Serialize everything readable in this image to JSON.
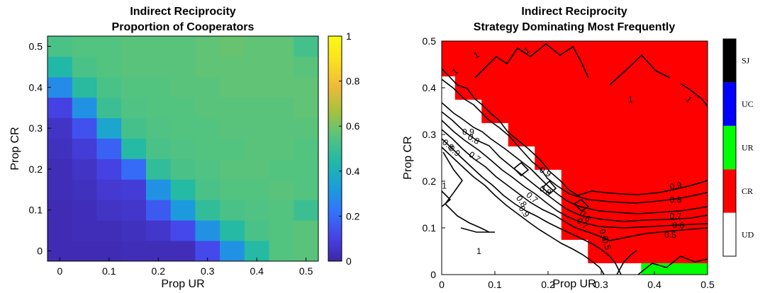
{
  "chart_data": [
    {
      "type": "heatmap",
      "title": "Indirect Reciprocity",
      "subtitle": "Proportion of Cooperators",
      "xlabel": "Prop UR",
      "ylabel": "Prop CR",
      "x_ticks": [
        "0",
        "0.1",
        "0.2",
        "0.3",
        "0.4",
        "0.5"
      ],
      "y_ticks": [
        "0",
        "0.1",
        "0.2",
        "0.3",
        "0.4",
        "0.5"
      ],
      "xlim": [
        -0.025,
        0.525
      ],
      "ylim": [
        -0.025,
        0.525
      ],
      "x": [
        0,
        0.05,
        0.1,
        0.15,
        0.2,
        0.25,
        0.3,
        0.35,
        0.4,
        0.45,
        0.5
      ],
      "y": [
        0,
        0.05,
        0.1,
        0.15,
        0.2,
        0.25,
        0.3,
        0.35,
        0.4,
        0.45,
        0.5
      ],
      "z": [
        [
          0.02,
          0.02,
          0.02,
          0.03,
          0.03,
          0.03,
          0.12,
          0.3,
          0.45,
          0.55,
          0.56
        ],
        [
          0.02,
          0.03,
          0.03,
          0.04,
          0.06,
          0.12,
          0.3,
          0.45,
          0.53,
          0.55,
          0.56
        ],
        [
          0.02,
          0.03,
          0.05,
          0.06,
          0.16,
          0.32,
          0.48,
          0.53,
          0.54,
          0.55,
          0.5
        ],
        [
          0.03,
          0.04,
          0.07,
          0.08,
          0.3,
          0.45,
          0.53,
          0.55,
          0.55,
          0.56,
          0.55
        ],
        [
          0.03,
          0.05,
          0.1,
          0.2,
          0.48,
          0.53,
          0.54,
          0.56,
          0.56,
          0.55,
          0.55
        ],
        [
          0.04,
          0.08,
          0.18,
          0.45,
          0.53,
          0.54,
          0.55,
          0.55,
          0.56,
          0.56,
          0.55
        ],
        [
          0.05,
          0.14,
          0.36,
          0.52,
          0.54,
          0.55,
          0.55,
          0.56,
          0.56,
          0.56,
          0.56
        ],
        [
          0.1,
          0.3,
          0.5,
          0.54,
          0.55,
          0.55,
          0.56,
          0.56,
          0.56,
          0.56,
          0.57
        ],
        [
          0.28,
          0.46,
          0.53,
          0.55,
          0.55,
          0.56,
          0.56,
          0.57,
          0.57,
          0.57,
          0.57
        ],
        [
          0.44,
          0.53,
          0.55,
          0.56,
          0.56,
          0.56,
          0.57,
          0.57,
          0.57,
          0.57,
          0.56
        ],
        [
          0.53,
          0.55,
          0.55,
          0.56,
          0.56,
          0.56,
          0.57,
          0.58,
          0.57,
          0.57,
          0.52
        ]
      ],
      "colorbar": {
        "min": 0,
        "max": 1,
        "tick_values": [
          0,
          0.2,
          0.4,
          0.6,
          0.8,
          1
        ],
        "tick_labels": [
          "0",
          "0.2",
          "0.4",
          "0.6",
          "0.8",
          "1"
        ],
        "colormap_stops": [
          "#3e26a8",
          "#4744e8",
          "#3075fb",
          "#1a9fd9",
          "#22b9a6",
          "#56c37e",
          "#a6c23f",
          "#f0ba3a",
          "#fae01f",
          "#f9fb15"
        ]
      }
    },
    {
      "type": "heatmap",
      "title": "Indirect Reciprocity",
      "subtitle": "Strategy Dominating Most Frequently",
      "xlabel": "Prop UR",
      "ylabel": "Prop CR",
      "x_ticks": [
        "0",
        "0.1",
        "0.2",
        "0.3",
        "0.4",
        "0.5"
      ],
      "y_ticks": [
        "0",
        "0.1",
        "0.2",
        "0.3",
        "0.4",
        "0.5"
      ],
      "xlim": [
        0,
        0.5
      ],
      "ylim": [
        0,
        0.5
      ],
      "x": [
        0,
        0.05,
        0.1,
        0.15,
        0.2,
        0.25,
        0.3,
        0.35,
        0.4,
        0.45,
        0.5
      ],
      "y": [
        0,
        0.05,
        0.1,
        0.15,
        0.2,
        0.25,
        0.3,
        0.35,
        0.4,
        0.45,
        0.5
      ],
      "grid_note": "each cell value = index of the dominating strategy (0=UD, 1=CR, 2=UR)",
      "z": [
        [
          0,
          0,
          0,
          0,
          0,
          0,
          0,
          0,
          2,
          2,
          2
        ],
        [
          0,
          0,
          0,
          0,
          0,
          0,
          1,
          1,
          1,
          1,
          1
        ],
        [
          0,
          0,
          0,
          0,
          0,
          1,
          1,
          1,
          1,
          1,
          1
        ],
        [
          0,
          0,
          0,
          0,
          0,
          1,
          1,
          1,
          1,
          1,
          1
        ],
        [
          0,
          0,
          0,
          0,
          0,
          1,
          1,
          1,
          1,
          1,
          1
        ],
        [
          0,
          0,
          0,
          0,
          1,
          1,
          1,
          1,
          1,
          1,
          1
        ],
        [
          0,
          0,
          0,
          1,
          1,
          1,
          1,
          1,
          1,
          1,
          1
        ],
        [
          0,
          0,
          1,
          1,
          1,
          1,
          1,
          1,
          1,
          1,
          1
        ],
        [
          0,
          1,
          1,
          1,
          1,
          1,
          1,
          1,
          1,
          1,
          1
        ],
        [
          1,
          1,
          1,
          1,
          1,
          1,
          1,
          1,
          1,
          1,
          1
        ],
        [
          1,
          1,
          1,
          1,
          1,
          1,
          1,
          1,
          1,
          1,
          1
        ]
      ],
      "categories": [
        "UD",
        "CR",
        "UR",
        "UC",
        "SJ"
      ],
      "category_colors": [
        "#ffffff",
        "#ff0000",
        "#00ff00",
        "#0000ff",
        "#000000"
      ],
      "contour_labels": [
        {
          "text": "1",
          "x": 0.025,
          "y": 0.435,
          "angle": 40
        },
        {
          "text": "1",
          "x": 0.065,
          "y": 0.47,
          "angle": 30
        },
        {
          "text": "1",
          "x": 0.16,
          "y": 0.48,
          "angle": 30
        },
        {
          "text": "1",
          "x": 0.355,
          "y": 0.375,
          "angle": 0
        },
        {
          "text": "1",
          "x": 0.465,
          "y": 0.375,
          "angle": -45
        },
        {
          "text": "1",
          "x": 0.005,
          "y": 0.19,
          "angle": 0
        },
        {
          "text": "1",
          "x": 0.07,
          "y": 0.05,
          "angle": 0
        },
        {
          "text": "0.9",
          "x": 0.05,
          "y": 0.305,
          "angle": 0
        },
        {
          "text": "0.8",
          "x": 0.06,
          "y": 0.29,
          "angle": -30
        },
        {
          "text": "0.8",
          "x": 0.012,
          "y": 0.278,
          "angle": -40
        },
        {
          "text": "0.9",
          "x": 0.024,
          "y": 0.265,
          "angle": -40
        },
        {
          "text": "0.7",
          "x": 0.062,
          "y": 0.252,
          "angle": -35
        },
        {
          "text": "0.9",
          "x": 0.195,
          "y": 0.22,
          "angle": -30
        },
        {
          "text": "0.8",
          "x": 0.195,
          "y": 0.18,
          "angle": -30
        },
        {
          "text": "0.7",
          "x": 0.17,
          "y": 0.165,
          "angle": -40
        },
        {
          "text": "0.8",
          "x": 0.15,
          "y": 0.157,
          "angle": -55
        },
        {
          "text": "0.9",
          "x": 0.155,
          "y": 0.135,
          "angle": -55
        },
        {
          "text": "0.9",
          "x": 0.44,
          "y": 0.19,
          "angle": 10
        },
        {
          "text": "0.8",
          "x": 0.44,
          "y": 0.16,
          "angle": 0
        },
        {
          "text": "0.7",
          "x": 0.44,
          "y": 0.125,
          "angle": 0
        },
        {
          "text": "0.6",
          "x": 0.445,
          "y": 0.105,
          "angle": 0
        },
        {
          "text": "0.5",
          "x": 0.43,
          "y": 0.085,
          "angle": 0
        },
        {
          "text": "0.7",
          "x": 0.265,
          "y": 0.11,
          "angle": -40
        },
        {
          "text": "0.6",
          "x": 0.305,
          "y": 0.085,
          "angle": -70
        },
        {
          "text": "0.5",
          "x": 0.31,
          "y": 0.065,
          "angle": -70
        },
        {
          "text": "0.6",
          "x": 0.27,
          "y": 0.125,
          "angle": -45
        }
      ],
      "colorbar": {
        "tick_labels": [
          "UD",
          "CR",
          "UR",
          "UC",
          "SJ"
        ]
      }
    }
  ]
}
